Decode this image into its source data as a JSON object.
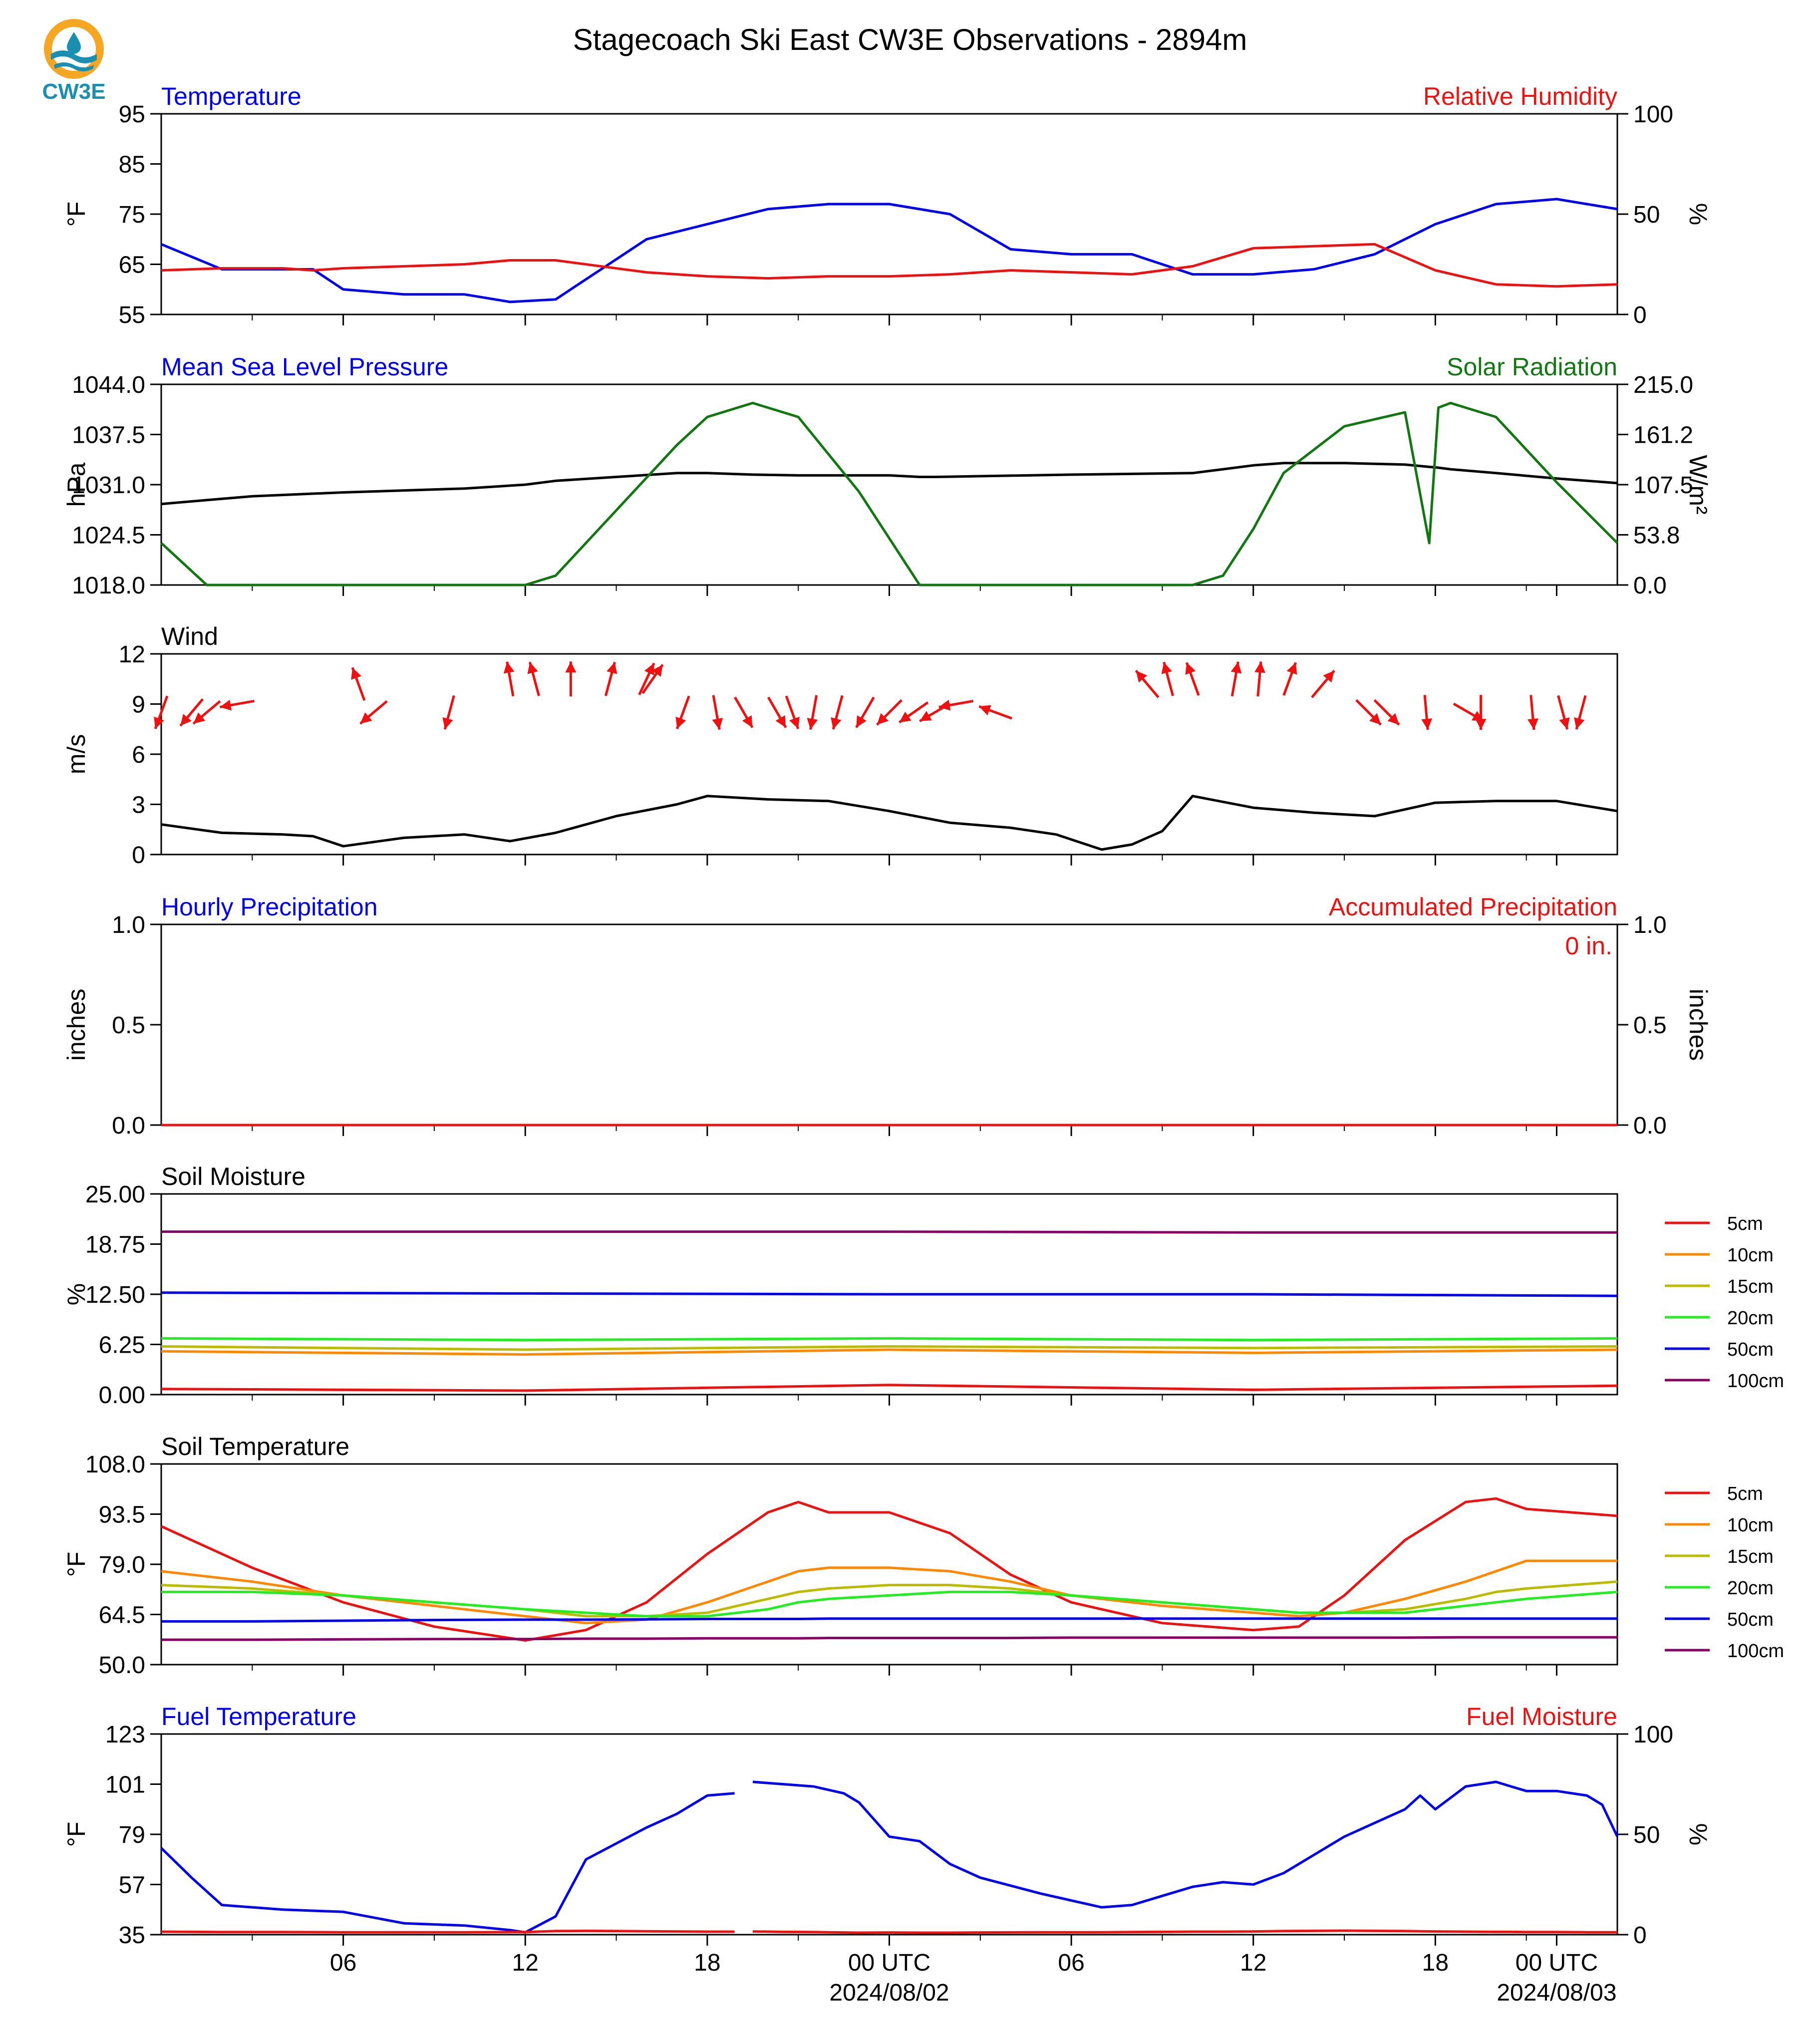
{
  "title": "Stagecoach Ski East CW3E Observations - 2894m",
  "logo": {
    "text": "CW3E",
    "ring_color": "#f5a623",
    "wave_color": "#1a8fb0"
  },
  "colors": {
    "blue": "#0000ee",
    "red": "#ee1111",
    "green": "#117711",
    "black": "#000000"
  },
  "time_axis": {
    "ticks": [
      "06",
      "12",
      "18",
      "00 UTC",
      "06",
      "12",
      "18",
      "00 UTC"
    ],
    "dates": [
      "2024/08/02",
      "2024/08/03"
    ]
  },
  "chart_data": [
    {
      "type": "line",
      "title_left": "Temperature",
      "title_right": "Relative Humidity",
      "ylabel": "°F",
      "ylabel_right": "%",
      "ylim": [
        55,
        95
      ],
      "yticks": [
        "95",
        "85",
        "75",
        "65",
        "55"
      ],
      "ylim_right": [
        0,
        100
      ],
      "yticks_right": [
        "100",
        "50",
        "0"
      ],
      "x_hours": [
        0,
        2,
        4,
        5,
        6,
        8,
        10,
        11.5,
        13,
        16,
        18,
        20,
        22,
        24,
        26,
        28,
        30,
        32,
        34,
        36,
        38,
        40,
        42,
        44,
        46,
        48
      ],
      "series": [
        {
          "name": "Temperature",
          "color": "#0000ee",
          "axis": "left",
          "values": [
            69,
            64,
            64,
            64,
            60,
            59,
            59,
            57.5,
            58,
            70,
            73,
            76,
            77,
            77,
            75,
            68,
            67,
            67,
            63,
            63,
            64,
            67,
            73,
            77,
            78,
            76
          ]
        },
        {
          "name": "Relative Humidity",
          "color": "#ee1111",
          "axis": "right",
          "values": [
            22,
            23,
            23,
            22,
            23,
            24,
            25,
            27,
            27,
            21,
            19,
            18,
            19,
            19,
            20,
            22,
            21,
            20,
            24,
            33,
            34,
            35,
            22,
            15,
            14,
            15
          ]
        }
      ]
    },
    {
      "type": "line",
      "title_left": "Mean Sea Level Pressure",
      "title_right": "Solar Radiation",
      "ylabel": "hPa",
      "ylabel_right": "W/m²",
      "ylim": [
        1018,
        1044
      ],
      "yticks": [
        "1044.0",
        "1037.5",
        "1031.0",
        "1024.5",
        "1018.0"
      ],
      "ylim_right": [
        0,
        215
      ],
      "yticks_right": [
        "215.0",
        "161.2",
        "107.5",
        "53.8",
        "0.0"
      ],
      "x_hours": [
        0,
        1.5,
        3,
        6,
        10,
        12,
        13,
        15,
        17,
        18,
        19.5,
        21,
        23,
        24,
        25,
        25.5,
        30,
        34,
        35,
        36,
        37,
        39,
        41,
        41.8,
        42.1,
        42.5,
        44,
        46,
        48
      ],
      "series": [
        {
          "name": "Mean Sea Level Pressure",
          "color": "#000000",
          "axis": "left",
          "values": [
            1028.5,
            1029,
            1029.5,
            1030,
            1030.5,
            1031,
            1031.5,
            1032,
            1032.5,
            1032.5,
            1032.3,
            1032.2,
            1032.2,
            1032.2,
            1032,
            1032,
            1032.3,
            1032.5,
            1033,
            1033.5,
            1033.8,
            1033.8,
            1033.6,
            1033.3,
            1033.2,
            1033,
            1032.5,
            1031.8,
            1031.2
          ]
        },
        {
          "name": "Solar Radiation",
          "color": "#117711",
          "axis": "right",
          "values": [
            45,
            0,
            0,
            0,
            0,
            0,
            10,
            80,
            150,
            180,
            195,
            180,
            100,
            50,
            0,
            0,
            0,
            0,
            10,
            60,
            120,
            170,
            185,
            45,
            190,
            195,
            180,
            110,
            45
          ]
        }
      ]
    },
    {
      "type": "line",
      "title_left": "Wind",
      "ylabel": "m/s",
      "ylim": [
        0,
        12
      ],
      "yticks": [
        "12",
        "9",
        "6",
        "3",
        "0"
      ],
      "x_hours": [
        0,
        2,
        4,
        5,
        6,
        8,
        10,
        11.5,
        13,
        15,
        17,
        18,
        20,
        22,
        24,
        26,
        28,
        29.5,
        31,
        32,
        33,
        34,
        36,
        38,
        40,
        42,
        44,
        46,
        48
      ],
      "series": [
        {
          "name": "Wind speed",
          "color": "#000000",
          "values": [
            1.8,
            1.3,
            1.2,
            1.1,
            0.5,
            1.0,
            1.2,
            0.8,
            1.3,
            2.3,
            3.0,
            3.5,
            3.3,
            3.2,
            2.6,
            1.9,
            1.6,
            1.2,
            0.3,
            0.6,
            1.4,
            3.5,
            2.8,
            2.5,
            2.3,
            3.1,
            3.2,
            3.2,
            2.6
          ]
        }
      ],
      "direction_arrows": {
        "color": "#ee1111",
        "x_hours": [
          0,
          1,
          1.5,
          2.5,
          6.5,
          7,
          9.5,
          11.5,
          12.3,
          13.5,
          14.8,
          16,
          16.2,
          17.2,
          18.3,
          19.2,
          20.3,
          20.8,
          21.5,
          22.3,
          23.2,
          24,
          24.8,
          25.5,
          26.2,
          27.5,
          32.5,
          33.2,
          34,
          35.4,
          36.2,
          37.2,
          38.3,
          39.8,
          40.4,
          41.7,
          43.1,
          43.5,
          45.2,
          46.2,
          46.8
        ],
        "heights_ms": [
          8.5,
          8.5,
          8.5,
          9.0,
          10.2,
          8.5,
          8.5,
          10.5,
          10.5,
          10.5,
          10.5,
          10.5,
          10.5,
          8.5,
          8.5,
          8.5,
          8.5,
          8.5,
          8.5,
          8.5,
          8.5,
          8.5,
          8.5,
          8.5,
          9.0,
          8.5,
          10.2,
          10.5,
          10.5,
          10.5,
          10.5,
          10.5,
          10.2,
          8.5,
          8.5,
          8.5,
          8.5,
          8.5,
          8.5,
          8.5,
          8.5
        ],
        "toward_deg": [
          200,
          220,
          230,
          260,
          340,
          230,
          195,
          350,
          345,
          0,
          15,
          25,
          35,
          200,
          170,
          150,
          150,
          160,
          190,
          195,
          210,
          225,
          235,
          240,
          260,
          290,
          320,
          345,
          340,
          10,
          5,
          20,
          40,
          135,
          135,
          175,
          120,
          180,
          175,
          165,
          195
        ]
      }
    },
    {
      "type": "line",
      "title_left": "Hourly Precipitation",
      "title_right": "Accumulated Precipitation",
      "accumulated_label": "0 in.",
      "ylabel": "inches",
      "ylabel_right": "inches",
      "ylim": [
        0,
        1
      ],
      "yticks": [
        "1.0",
        "0.5",
        "0.0"
      ],
      "ylim_right": [
        0,
        1
      ],
      "yticks_right": [
        "1.0",
        "0.5",
        "0.0"
      ],
      "x_hours": [
        0,
        48
      ],
      "series": [
        {
          "name": "Hourly Precipitation",
          "color": "#0000ee",
          "values": [
            0,
            0
          ]
        },
        {
          "name": "Accumulated Precipitation",
          "color": "#ee1111",
          "values": [
            0,
            0
          ]
        }
      ]
    },
    {
      "type": "line",
      "title_left": "Soil Moisture",
      "ylabel": "%",
      "ylim": [
        0,
        25
      ],
      "yticks": [
        "25.00",
        "18.75",
        "12.50",
        "6.25",
        "0.00"
      ],
      "x_hours": [
        0,
        12,
        24,
        36,
        48
      ],
      "legend": [
        "5cm",
        "10cm",
        "15cm",
        "20cm",
        "50cm",
        "100cm"
      ],
      "series": [
        {
          "name": "5cm",
          "color": "#ee1111",
          "values": [
            0.7,
            0.5,
            1.2,
            0.6,
            1.1
          ]
        },
        {
          "name": "10cm",
          "color": "#ff8800",
          "values": [
            5.4,
            5.0,
            5.6,
            5.2,
            5.6
          ]
        },
        {
          "name": "15cm",
          "color": "#bbbb00",
          "values": [
            6.0,
            5.6,
            6.0,
            5.8,
            6.0
          ]
        },
        {
          "name": "20cm",
          "color": "#22ee22",
          "values": [
            7.0,
            6.8,
            7.0,
            6.8,
            7.0
          ]
        },
        {
          "name": "50cm",
          "color": "#0000ee",
          "values": [
            12.7,
            12.6,
            12.5,
            12.5,
            12.3
          ]
        },
        {
          "name": "100cm",
          "color": "#880066",
          "values": [
            20.3,
            20.3,
            20.3,
            20.2,
            20.2
          ]
        }
      ]
    },
    {
      "type": "line",
      "title_left": "Soil Temperature",
      "ylabel": "°F",
      "ylim": [
        50,
        108
      ],
      "yticks": [
        "108.0",
        "93.5",
        "79.0",
        "64.5",
        "50.0"
      ],
      "x_hours": [
        0,
        3,
        6,
        9,
        12,
        14,
        16,
        18,
        20,
        21,
        22,
        24,
        26,
        28,
        30,
        33,
        36,
        37.5,
        39,
        41,
        43,
        44,
        45,
        48
      ],
      "legend": [
        "5cm",
        "10cm",
        "15cm",
        "20cm",
        "50cm",
        "100cm"
      ],
      "series": [
        {
          "name": "5cm",
          "color": "#ee1111",
          "values": [
            90,
            78,
            68,
            61,
            57,
            60,
            68,
            82,
            94,
            97,
            94,
            94,
            88,
            76,
            68,
            62,
            60,
            61,
            70,
            86,
            97,
            98,
            95,
            93
          ]
        },
        {
          "name": "10cm",
          "color": "#ff8800",
          "values": [
            77,
            74,
            70,
            67,
            64,
            62,
            63,
            68,
            74,
            77,
            78,
            78,
            77,
            74,
            70,
            67,
            65,
            64,
            65,
            69,
            74,
            77,
            80,
            80
          ]
        },
        {
          "name": "15cm",
          "color": "#bbbb00",
          "values": [
            73,
            72,
            70,
            68,
            66,
            64,
            64,
            65,
            69,
            71,
            72,
            73,
            73,
            72,
            70,
            68,
            66,
            65,
            65,
            66,
            69,
            71,
            72,
            74
          ]
        },
        {
          "name": "20cm",
          "color": "#22ee22",
          "values": [
            71,
            71,
            70,
            68,
            66,
            65,
            64,
            64,
            66,
            68,
            69,
            70,
            71,
            71,
            70,
            68,
            66,
            65,
            65,
            65,
            67,
            68,
            69,
            71
          ]
        },
        {
          "name": "50cm",
          "color": "#0000ee",
          "values": [
            62.5,
            62.5,
            62.7,
            62.9,
            63,
            63,
            63.1,
            63.2,
            63.2,
            63.2,
            63.3,
            63.3,
            63.3,
            63.3,
            63.3,
            63.3,
            63.3,
            63.3,
            63.3,
            63.3,
            63.3,
            63.3,
            63.3,
            63.3
          ]
        },
        {
          "name": "100cm",
          "color": "#880066",
          "values": [
            57.2,
            57.2,
            57.3,
            57.4,
            57.4,
            57.5,
            57.5,
            57.6,
            57.6,
            57.6,
            57.7,
            57.7,
            57.7,
            57.7,
            57.8,
            57.8,
            57.8,
            57.8,
            57.8,
            57.8,
            57.9,
            57.9,
            57.9,
            57.9
          ]
        }
      ]
    },
    {
      "type": "line",
      "title_left": "Fuel Temperature",
      "title_right": "Fuel Moisture",
      "ylabel": "°F",
      "ylabel_right": "%",
      "ylim": [
        35,
        123
      ],
      "yticks": [
        "123",
        "101",
        "79",
        "57",
        "35"
      ],
      "ylim_right": [
        0,
        100
      ],
      "yticks_right": [
        "100",
        "50",
        "0"
      ],
      "x_hours": [
        0,
        1,
        2,
        4,
        6,
        8,
        10,
        11.5,
        12,
        13,
        14,
        16,
        17,
        18,
        18.9,
        19.1,
        19.5,
        20.5,
        21.5,
        22.5,
        23,
        24,
        25,
        26,
        27,
        29,
        30,
        31,
        32,
        33,
        34,
        35,
        36,
        37,
        38,
        39,
        40,
        41,
        41.5,
        42,
        43,
        44,
        44.5,
        45,
        46,
        47,
        47.5,
        48
      ],
      "series": [
        {
          "name": "Fuel Temperature",
          "color": "#0000ee",
          "axis": "left",
          "values": [
            73,
            60,
            48,
            46,
            45,
            40,
            39,
            37,
            36,
            43,
            68,
            82,
            88,
            96,
            97,
            null,
            102,
            101,
            100,
            97,
            93,
            78,
            76,
            66,
            60,
            53,
            50,
            47,
            48,
            52,
            56,
            58,
            57,
            62,
            70,
            78,
            84,
            90,
            96,
            90,
            100,
            102,
            100,
            98,
            98,
            96,
            92,
            78
          ]
        },
        {
          "name": "Fuel Moisture",
          "color": "#ee1111",
          "axis": "right",
          "values": [
            1.5,
            1.4,
            1.3,
            1.3,
            1.2,
            1.2,
            1.2,
            1.3,
            1.3,
            1.8,
            1.9,
            1.7,
            1.6,
            1.5,
            1.5,
            null,
            1.6,
            1.4,
            1.3,
            1.1,
            1.0,
            1.1,
            1.0,
            1.0,
            1.1,
            1.2,
            1.2,
            1.2,
            1.3,
            1.4,
            1.5,
            1.5,
            1.6,
            1.8,
            1.9,
            2.0,
            1.9,
            1.8,
            1.7,
            1.6,
            1.5,
            1.4,
            1.4,
            1.3,
            1.3,
            1.2,
            1.2,
            1.2
          ]
        }
      ]
    }
  ]
}
